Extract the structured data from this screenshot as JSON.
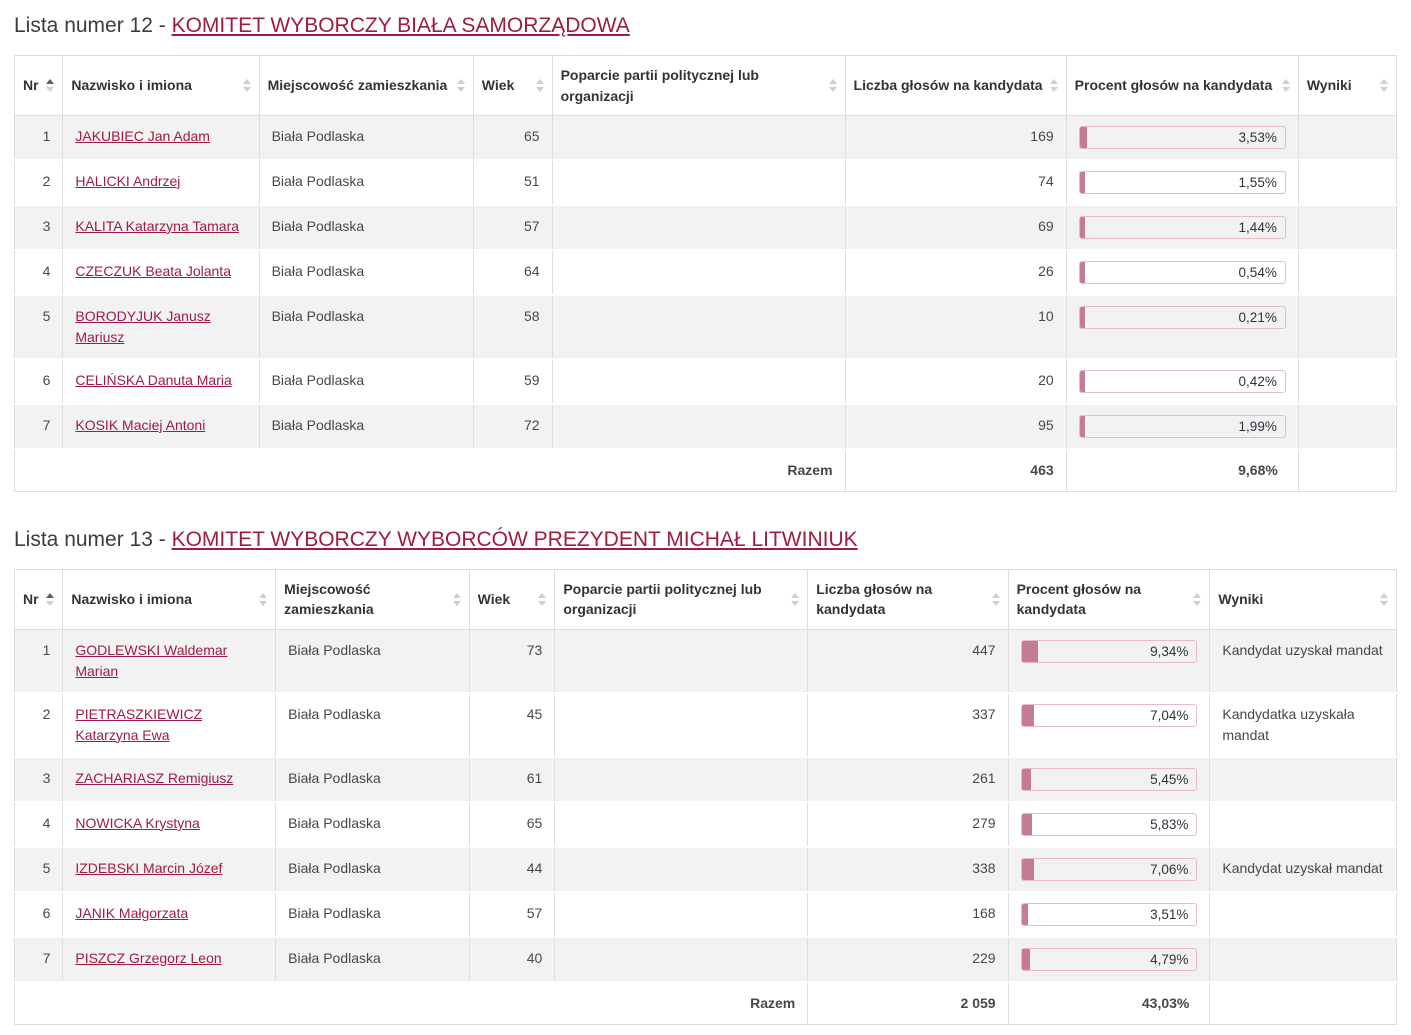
{
  "colors": {
    "link": "#a01c3e",
    "bar_fill": "#c57b91",
    "bar_border": "#e7bac6",
    "row_stripe": "#f2f2f2",
    "table_border": "#dddddd"
  },
  "column_keys": [
    "nr",
    "name",
    "city",
    "age",
    "support",
    "votes",
    "percent",
    "results"
  ],
  "lists": [
    {
      "id": "lista-12",
      "heading_prefix": "Lista numer 12 - ",
      "heading_link": "KOMITET WYBORCZY BIAŁA SAMORZĄDOWA",
      "columns": [
        {
          "label": "Nr",
          "sorted": true
        },
        {
          "label": "Nazwisko i imiona",
          "sorted": false
        },
        {
          "label": "Miejscowość zamieszkania",
          "sorted": false
        },
        {
          "label": "Wiek",
          "sorted": false
        },
        {
          "label": "Poparcie partii politycznej lub organizacji",
          "sorted": false
        },
        {
          "label": "Liczba głosów na kandydata",
          "sorted": false
        },
        {
          "label": "Procent głosów na kandydata",
          "sorted": false
        },
        {
          "label": "Wyniki",
          "sorted": false
        }
      ],
      "rows": [
        {
          "nr": "1",
          "name": "JAKUBIEC Jan Adam",
          "city": "Biała Podlaska",
          "age": "65",
          "support": "",
          "votes": "169",
          "percent_label": "3,53%",
          "percent_value": 3.53,
          "result": ""
        },
        {
          "nr": "2",
          "name": "HALICKI Andrzej",
          "city": "Biała Podlaska",
          "age": "51",
          "support": "",
          "votes": "74",
          "percent_label": "1,55%",
          "percent_value": 1.55,
          "result": ""
        },
        {
          "nr": "3",
          "name": "KALITA Katarzyna Tamara",
          "city": "Biała Podlaska",
          "age": "57",
          "support": "",
          "votes": "69",
          "percent_label": "1,44%",
          "percent_value": 1.44,
          "result": ""
        },
        {
          "nr": "4",
          "name": "CZECZUK Beata Jolanta",
          "city": "Biała Podlaska",
          "age": "64",
          "support": "",
          "votes": "26",
          "percent_label": "0,54%",
          "percent_value": 0.54,
          "result": ""
        },
        {
          "nr": "5",
          "name": "BORODYJUK Janusz Mariusz",
          "city": "Biała Podlaska",
          "age": "58",
          "support": "",
          "votes": "10",
          "percent_label": "0,21%",
          "percent_value": 0.21,
          "result": ""
        },
        {
          "nr": "6",
          "name": "CELIŃSKA Danuta Maria",
          "city": "Biała Podlaska",
          "age": "59",
          "support": "",
          "votes": "20",
          "percent_label": "0,42%",
          "percent_value": 0.42,
          "result": ""
        },
        {
          "nr": "7",
          "name": "KOSIK Maciej Antoni",
          "city": "Biała Podlaska",
          "age": "72",
          "support": "",
          "votes": "95",
          "percent_label": "1,99%",
          "percent_value": 1.99,
          "result": ""
        }
      ],
      "total": {
        "label": "Razem",
        "votes": "463",
        "percent": "9,68%"
      }
    },
    {
      "id": "lista-13",
      "heading_prefix": "Lista numer 13 - ",
      "heading_link": "KOMITET WYBORCZY WYBORCÓW PREZYDENT MICHAŁ LITWINIUK",
      "columns": [
        {
          "label": "Nr",
          "sorted": true
        },
        {
          "label": "Nazwisko i imiona",
          "sorted": false
        },
        {
          "label": "Miejscowość zamieszkania",
          "sorted": false
        },
        {
          "label": "Wiek",
          "sorted": false
        },
        {
          "label": "Poparcie partii politycznej lub organizacji",
          "sorted": false
        },
        {
          "label": "Liczba głosów na kandydata",
          "sorted": false
        },
        {
          "label": "Procent głosów na kandydata",
          "sorted": false
        },
        {
          "label": "Wyniki",
          "sorted": false
        }
      ],
      "rows": [
        {
          "nr": "1",
          "name": "GODLEWSKI Waldemar Marian",
          "city": "Biała Podlaska",
          "age": "73",
          "support": "",
          "votes": "447",
          "percent_label": "9,34%",
          "percent_value": 9.34,
          "result": "Kandydat uzyskał mandat"
        },
        {
          "nr": "2",
          "name": "PIETRASZKIEWICZ Katarzyna Ewa",
          "city": "Biała Podlaska",
          "age": "45",
          "support": "",
          "votes": "337",
          "percent_label": "7,04%",
          "percent_value": 7.04,
          "result": "Kandydatka uzyskała mandat"
        },
        {
          "nr": "3",
          "name": "ZACHARIASZ Remigiusz",
          "city": "Biała Podlaska",
          "age": "61",
          "support": "",
          "votes": "261",
          "percent_label": "5,45%",
          "percent_value": 5.45,
          "result": ""
        },
        {
          "nr": "4",
          "name": "NOWICKA Krystyna",
          "city": "Biała Podlaska",
          "age": "65",
          "support": "",
          "votes": "279",
          "percent_label": "5,83%",
          "percent_value": 5.83,
          "result": ""
        },
        {
          "nr": "5",
          "name": "IZDEBSKI Marcin Józef",
          "city": "Biała Podlaska",
          "age": "44",
          "support": "",
          "votes": "338",
          "percent_label": "7,06%",
          "percent_value": 7.06,
          "result": "Kandydat uzyskał mandat"
        },
        {
          "nr": "6",
          "name": "JANIK Małgorzata",
          "city": "Biała Podlaska",
          "age": "57",
          "support": "",
          "votes": "168",
          "percent_label": "3,51%",
          "percent_value": 3.51,
          "result": ""
        },
        {
          "nr": "7",
          "name": "PISZCZ Grzegorz Leon",
          "city": "Biała Podlaska",
          "age": "40",
          "support": "",
          "votes": "229",
          "percent_label": "4,79%",
          "percent_value": 4.79,
          "result": ""
        }
      ],
      "total": {
        "label": "Razem",
        "votes": "2 059",
        "percent": "43,03%"
      }
    }
  ]
}
